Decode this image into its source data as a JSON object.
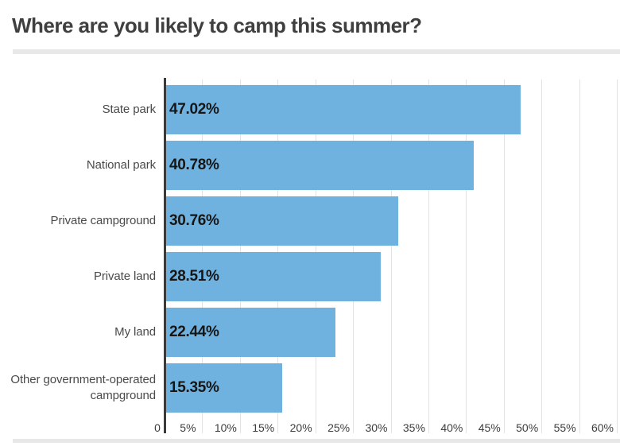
{
  "title": "Where are you likely to camp this summer?",
  "colors": {
    "bar_fill": "#6FB2DF",
    "axis_line": "#3a3a3a",
    "gridline": "#e2e2e2",
    "divider": "#e8e8e8",
    "title_text": "#3f3f3f",
    "category_text": "#4a4a4a",
    "value_text": "#161616",
    "tick_text": "#3d3d3d",
    "background": "#ffffff"
  },
  "chart_data": {
    "type": "bar",
    "orientation": "horizontal",
    "title": "Where are you likely to camp this summer?",
    "categories": [
      "State park",
      "National park",
      "Private campground",
      "Private land",
      "My land",
      "Other government-operated campground"
    ],
    "values": [
      47.02,
      40.78,
      30.76,
      28.51,
      22.44,
      15.35
    ],
    "value_labels": [
      "47.02%",
      "40.78%",
      "30.76%",
      "28.51%",
      "22.44%",
      "15.35%"
    ],
    "x_tick_labels": [
      "0",
      "5%",
      "10%",
      "15%",
      "20%",
      "25%",
      "30%",
      "35%",
      "40%",
      "45%",
      "50%",
      "55%",
      "60%"
    ],
    "xlim": [
      0,
      60
    ],
    "x_tick_step": 5,
    "xlabel": "",
    "ylabel": "",
    "grid": "vertical gridlines at every 5%",
    "legend": "none",
    "value_label_position": "inside bar, left-aligned"
  }
}
